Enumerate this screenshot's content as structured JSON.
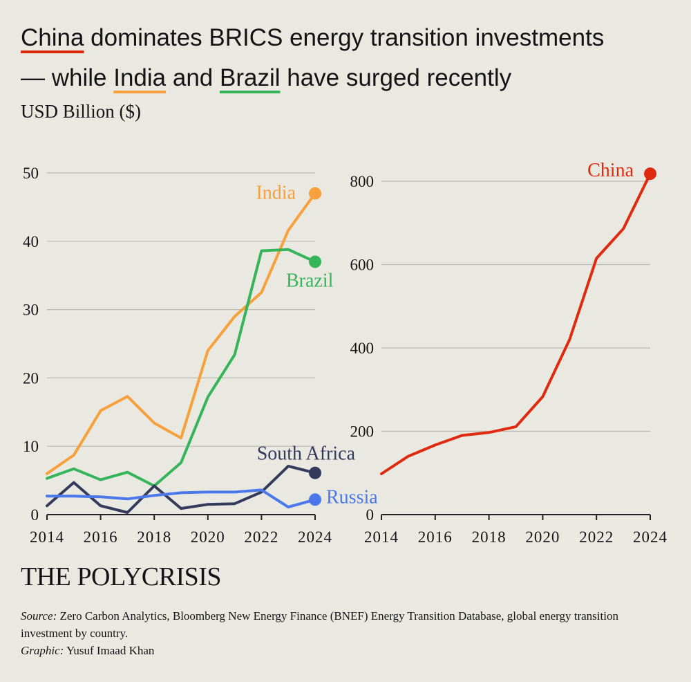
{
  "title": {
    "china": "China",
    "part1": " dominates BRICS energy transition investments",
    "part2": "— while ",
    "india": "India",
    "and": " and ",
    "brazil": "Brazil",
    "part3": " have surged recently"
  },
  "unit_label": "USD Billion ($)",
  "logo": "THE POLYCRISIS",
  "footer": {
    "source_label": "Source:",
    "source_text": " Zero Carbon Analytics, Bloomberg New Energy Finance (BNEF) Energy Transition Database, global energy transition investment by country.",
    "graphic_label": "Graphic:",
    "graphic_text": " Yusuf Imaad Khan"
  },
  "colors": {
    "China": "#e02a10",
    "India": "#f7a03c",
    "Brazil": "#35b45a",
    "South Africa": "#343a5c",
    "Russia": "#4a78ea",
    "grid": "#b9b9b2",
    "axis": "#222222"
  },
  "chart_data": [
    {
      "type": "line",
      "x": [
        2014,
        2015,
        2016,
        2017,
        2018,
        2019,
        2020,
        2021,
        2022,
        2023,
        2024
      ],
      "xticks": [
        2014,
        2016,
        2018,
        2020,
        2022,
        2024
      ],
      "yticks": [
        0,
        10,
        20,
        30,
        40,
        50
      ],
      "ylim": [
        0,
        50
      ],
      "grid": true,
      "series": [
        {
          "name": "India",
          "values": [
            6,
            8.7,
            15.2,
            17.3,
            13.4,
            11.2,
            24,
            29,
            32.5,
            41.6,
            47
          ]
        },
        {
          "name": "Brazil",
          "values": [
            5.3,
            6.7,
            5.1,
            6.2,
            4.2,
            7.6,
            17.2,
            23.4,
            38.6,
            38.8,
            37
          ]
        },
        {
          "name": "South Africa",
          "values": [
            1.3,
            4.7,
            1.3,
            0.3,
            4.2,
            0.9,
            1.5,
            1.6,
            3.3,
            7.1,
            6.1
          ]
        },
        {
          "name": "Russia",
          "values": [
            2.7,
            2.7,
            2.6,
            2.3,
            2.8,
            3.2,
            3.3,
            3.3,
            3.6,
            1.1,
            2.2
          ]
        }
      ]
    },
    {
      "type": "line",
      "x": [
        2014,
        2015,
        2016,
        2017,
        2018,
        2019,
        2020,
        2021,
        2022,
        2023,
        2024
      ],
      "xticks": [
        2014,
        2016,
        2018,
        2020,
        2022,
        2024
      ],
      "yticks": [
        0,
        200,
        400,
        600,
        800
      ],
      "ylim": [
        0,
        830
      ],
      "grid": true,
      "series": [
        {
          "name": "China",
          "values": [
            98,
            140,
            167,
            190,
            197,
            211,
            283,
            420,
            615,
            686,
            818
          ]
        }
      ]
    }
  ]
}
